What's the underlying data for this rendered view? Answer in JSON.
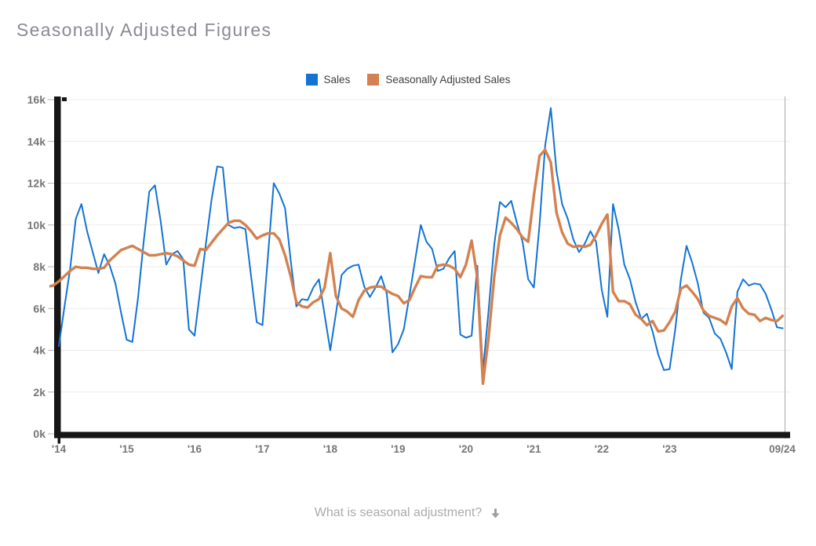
{
  "page": {
    "title": "Seasonally Adjusted Figures"
  },
  "legend": {
    "items": [
      {
        "label": "Sales",
        "color": "#1273d4"
      },
      {
        "label": "Seasonally Adjusted Sales",
        "color": "#d4814f"
      }
    ]
  },
  "footer": {
    "link_text": "What is seasonal adjustment?",
    "arrow_icon_color": "#9e9e9e"
  },
  "chart_data": {
    "type": "line",
    "title": "Seasonally Adjusted Figures",
    "unit": "thousands",
    "grid": true,
    "legend_position": "top-center",
    "cursor_line_label": "09/24",
    "x_axis": {
      "start": "2014-01",
      "end": "2024-09",
      "interval": "month",
      "year_tick_labels": [
        "'14",
        "'15",
        "'16",
        "'17",
        "'18",
        "'19",
        "'20",
        "'21",
        "'22",
        "'23"
      ],
      "end_tick_label": "09/24"
    },
    "y_axis": {
      "min": 0,
      "max": 16000,
      "tick_labels": [
        "0k",
        "2k",
        "4k",
        "6k",
        "8k",
        "10k",
        "12k",
        "14k",
        "16k"
      ]
    },
    "series": [
      {
        "name": "Sales",
        "color": "#1273d4",
        "start": "2014-01",
        "values_k": [
          4.2,
          6.1,
          7.9,
          10.3,
          11.0,
          9.7,
          8.7,
          7.7,
          8.6,
          8.05,
          7.2,
          5.8,
          4.5,
          4.4,
          6.5,
          9.2,
          11.6,
          11.9,
          10.2,
          8.1,
          8.6,
          8.75,
          8.35,
          5.0,
          4.7,
          6.9,
          9.1,
          11.2,
          12.8,
          12.75,
          10.0,
          9.85,
          9.9,
          9.8,
          7.55,
          5.35,
          5.2,
          8.6,
          12.0,
          11.5,
          10.8,
          8.3,
          6.1,
          6.45,
          6.4,
          7.0,
          7.4,
          5.7,
          4.0,
          5.75,
          7.6,
          7.9,
          8.05,
          8.1,
          7.05,
          6.55,
          7.0,
          7.55,
          6.7,
          3.9,
          4.3,
          5.0,
          6.6,
          8.3,
          10.0,
          9.2,
          8.85,
          7.8,
          7.9,
          8.4,
          8.75,
          4.75,
          4.6,
          4.7,
          8.05,
          3.0,
          5.9,
          9.05,
          11.1,
          10.85,
          11.15,
          10.1,
          9.2,
          7.4,
          7.0,
          10.0,
          13.8,
          15.6,
          12.6,
          11.0,
          10.3,
          9.3,
          8.7,
          9.1,
          9.7,
          9.2,
          6.9,
          5.6,
          11.0,
          9.8,
          8.1,
          7.4,
          6.3,
          5.5,
          5.75,
          4.9,
          3.8,
          3.05,
          3.1,
          5.0,
          7.4,
          9.0,
          8.2,
          7.2,
          5.8,
          5.55,
          4.8,
          4.55,
          3.9,
          3.1,
          6.8,
          7.4,
          7.1,
          7.2,
          7.15,
          6.7,
          5.95,
          5.1,
          5.05
        ]
      },
      {
        "name": "Seasonally Adjusted Sales",
        "color": "#d4814f",
        "start": "2013-11",
        "values_k": [
          7.05,
          7.1,
          7.3,
          7.55,
          7.8,
          8.0,
          7.95,
          7.95,
          7.9,
          7.9,
          7.95,
          8.3,
          8.55,
          8.8,
          8.9,
          9.0,
          8.85,
          8.7,
          8.55,
          8.55,
          8.6,
          8.65,
          8.6,
          8.5,
          8.3,
          8.1,
          8.05,
          8.85,
          8.8,
          9.15,
          9.5,
          9.8,
          10.1,
          10.2,
          10.2,
          10.0,
          9.7,
          9.35,
          9.5,
          9.6,
          9.6,
          9.3,
          8.55,
          7.55,
          6.3,
          6.1,
          6.05,
          6.3,
          6.45,
          7.0,
          8.65,
          6.6,
          6.0,
          5.85,
          5.6,
          6.4,
          6.85,
          7.0,
          7.05,
          7.05,
          6.85,
          6.7,
          6.6,
          6.25,
          6.4,
          7.0,
          7.55,
          7.5,
          7.5,
          8.05,
          8.1,
          8.05,
          7.9,
          7.5,
          8.1,
          9.25,
          7.5,
          2.4,
          4.6,
          7.5,
          9.5,
          10.35,
          10.1,
          9.8,
          9.4,
          9.2,
          11.4,
          13.3,
          13.6,
          13.0,
          10.6,
          9.65,
          9.1,
          8.95,
          9.0,
          8.95,
          9.05,
          9.5,
          10.05,
          10.5,
          6.8,
          6.35,
          6.35,
          6.2,
          5.7,
          5.5,
          5.2,
          5.4,
          4.9,
          4.95,
          5.35,
          5.85,
          6.95,
          7.1,
          6.8,
          6.45,
          5.9,
          5.65,
          5.55,
          5.45,
          5.25,
          6.1,
          6.5,
          6.0,
          5.75,
          5.7,
          5.4,
          5.55,
          5.45,
          5.4,
          5.65
        ]
      }
    ]
  }
}
